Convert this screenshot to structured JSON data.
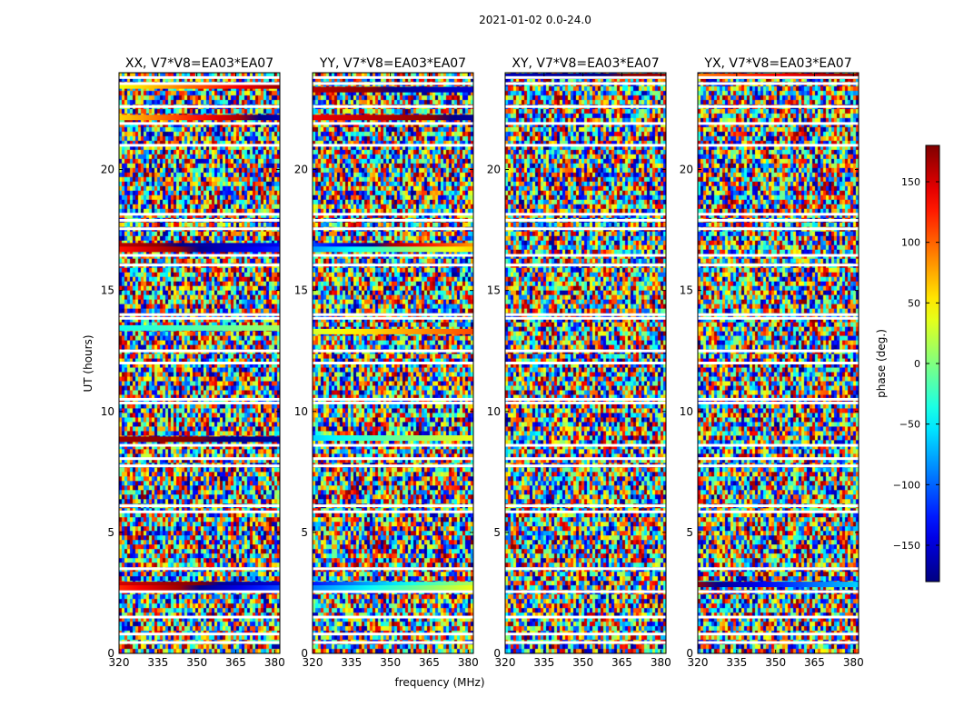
{
  "figure": {
    "suptitle": "2021-01-02 0.0-24.0"
  },
  "chart_data": {
    "type": "heatmap",
    "title": "2021-01-02 0.0-24.0",
    "xlabel": "frequency (MHz)",
    "ylabel": "UT (hours)",
    "xlim": [
      320,
      382
    ],
    "ylim": [
      0,
      24
    ],
    "x_ticks": [
      "320",
      "335",
      "350",
      "365",
      "380"
    ],
    "y_ticks": [
      "0",
      "5",
      "10",
      "15",
      "20"
    ],
    "x_tick_values": [
      320,
      335,
      350,
      365,
      380
    ],
    "y_tick_values": [
      0,
      5,
      10,
      15,
      20
    ],
    "panels": [
      {
        "title": "XX, V7*V8=EA03*EA07",
        "pol": "XX",
        "show_ylabel": true,
        "show_xlabel": false
      },
      {
        "title": "YY, V7*V8=EA03*EA07",
        "pol": "YY",
        "show_ylabel": false,
        "show_xlabel": true
      },
      {
        "title": "XY, V7*V8=EA03*EA07",
        "pol": "XY",
        "show_ylabel": false,
        "show_xlabel": false
      },
      {
        "title": "YX, V7*V8=EA03*EA07",
        "pol": "YX",
        "show_ylabel": false,
        "show_xlabel": false
      }
    ],
    "colorbar": {
      "label": "phase (deg.)",
      "vmin": -180,
      "vmax": 180,
      "ticks": [
        -150,
        -100,
        -50,
        0,
        50,
        100,
        150
      ],
      "tick_labels": [
        "−150",
        "−100",
        "−50",
        "0",
        "50",
        "100",
        "150"
      ],
      "cmap": "jet"
    },
    "flagged_ut_hours": [
      23.8,
      23.55,
      22.6,
      21.9,
      21.0,
      18.15,
      17.9,
      17.55,
      16.45,
      16.05,
      14.0,
      13.85,
      12.5,
      12.0,
      10.5,
      10.35,
      8.6,
      8.05,
      7.75,
      6.1,
      5.85,
      3.5,
      2.55,
      1.5,
      0.8,
      0.45
    ],
    "coherent_bands": {
      "XX": [
        {
          "ut": 23.45,
          "p0": 40,
          "p1": 170
        },
        {
          "ut": 22.15,
          "p0": 60,
          "p1": -160
        },
        {
          "ut": 16.85,
          "p0": 160,
          "p1": -140
        },
        {
          "ut": 16.7,
          "p0": 130,
          "p1": -120
        },
        {
          "ut": 13.45,
          "p0": -40,
          "p1": 10
        },
        {
          "ut": 8.85,
          "p0": 170,
          "p1": -170
        },
        {
          "ut": 2.85,
          "p0": 150,
          "p1": -150
        },
        {
          "ut": 2.7,
          "p0": 120,
          "p1": -110
        }
      ],
      "YY": [
        {
          "ut": 23.3,
          "p0": 160,
          "p1": -150
        },
        {
          "ut": 22.15,
          "p0": 140,
          "p1": -170
        },
        {
          "ut": 16.85,
          "p0": -110,
          "p1": 80
        },
        {
          "ut": 16.7,
          "p0": -80,
          "p1": 60
        },
        {
          "ut": 13.3,
          "p0": 30,
          "p1": 110
        },
        {
          "ut": 8.9,
          "p0": -60,
          "p1": 40
        },
        {
          "ut": 2.85,
          "p0": -130,
          "p1": 20
        },
        {
          "ut": 2.7,
          "p0": -90,
          "p1": 40
        }
      ],
      "XY": [
        {
          "ut": 23.85,
          "p0": -160,
          "p1": 170
        }
      ],
      "YX": [
        {
          "ut": 23.85,
          "p0": 90,
          "p1": 180
        },
        {
          "ut": 2.85,
          "p0": 170,
          "p1": -60
        }
      ]
    }
  }
}
